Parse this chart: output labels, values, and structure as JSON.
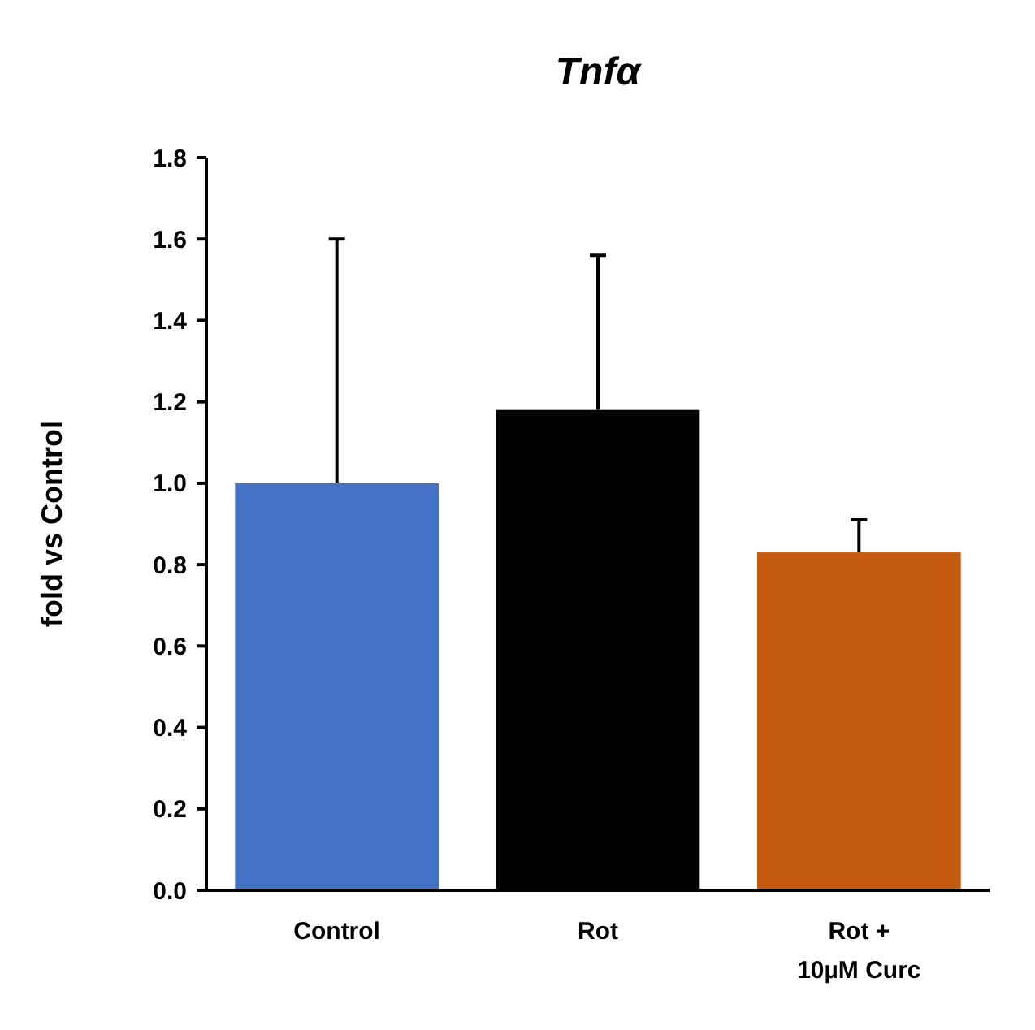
{
  "chart_data": {
    "type": "bar",
    "title": "Tnfα",
    "ylabel": "fold vs Control",
    "categories": [
      "Control",
      "Rot",
      "Rot +\n10µM Curc"
    ],
    "values": [
      1.0,
      1.18,
      0.83
    ],
    "colors": [
      "#4472c4",
      "#000000",
      "#c55a11"
    ],
    "errors": [
      [
        1.0,
        1.6
      ],
      [
        1.18,
        1.56
      ],
      [
        0.83,
        0.91
      ]
    ],
    "ylim": [
      0,
      1.8
    ],
    "yticks": [
      {
        "value": 0,
        "label": "0.0"
      },
      {
        "value": 0.2,
        "label": "0.2"
      },
      {
        "value": 0.4,
        "label": "0.4"
      },
      {
        "value": 0.6,
        "label": "0.6"
      },
      {
        "value": 0.8,
        "label": "0.8"
      },
      {
        "value": 1.0,
        "label": "1.0"
      },
      {
        "value": 1.2,
        "label": "1.2"
      },
      {
        "value": 1.4,
        "label": "1.4"
      },
      {
        "value": 1.6,
        "label": "1.6"
      },
      {
        "value": 1.8,
        "label": "1.8"
      }
    ],
    "grid": false
  }
}
